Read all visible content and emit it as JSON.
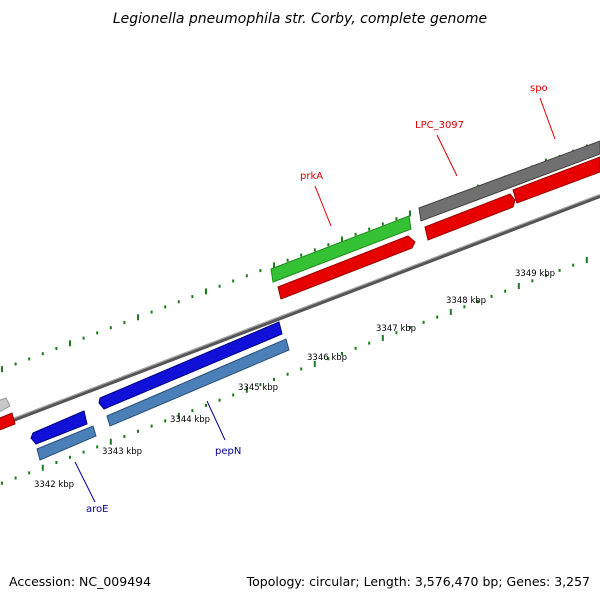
{
  "title": "Legionella pneumophila str. Corby, complete genome",
  "footer": {
    "accession": "Accession: NC_009494",
    "summary": "Topology: circular; Length: 3,576,470 bp; Genes: 3,257"
  },
  "colors": {
    "forward_default": "#7a7a7a",
    "forward_highlight": "#34c234",
    "reverse_default": "#e60000",
    "lower_dark": "#1010d8",
    "lower_light": "#4a7fb8",
    "tick": "#1d7a1d",
    "label_red": "#e00000",
    "label_blue": "#000099"
  },
  "scale_labels": [
    "3342 kbp",
    "3343 kbp",
    "3344 kbp",
    "3345 kbp",
    "3346 kbp",
    "3347 kbp",
    "3348 kbp",
    "3349 kbp"
  ],
  "gene_labels": [
    {
      "name": "aroE",
      "color": "label_blue"
    },
    {
      "name": "pepN",
      "color": "label_blue"
    },
    {
      "name": "prkA",
      "color": "label_red"
    },
    {
      "name": "LPC_3097",
      "color": "label_red"
    },
    {
      "name": "spo",
      "color": "label_red"
    }
  ]
}
